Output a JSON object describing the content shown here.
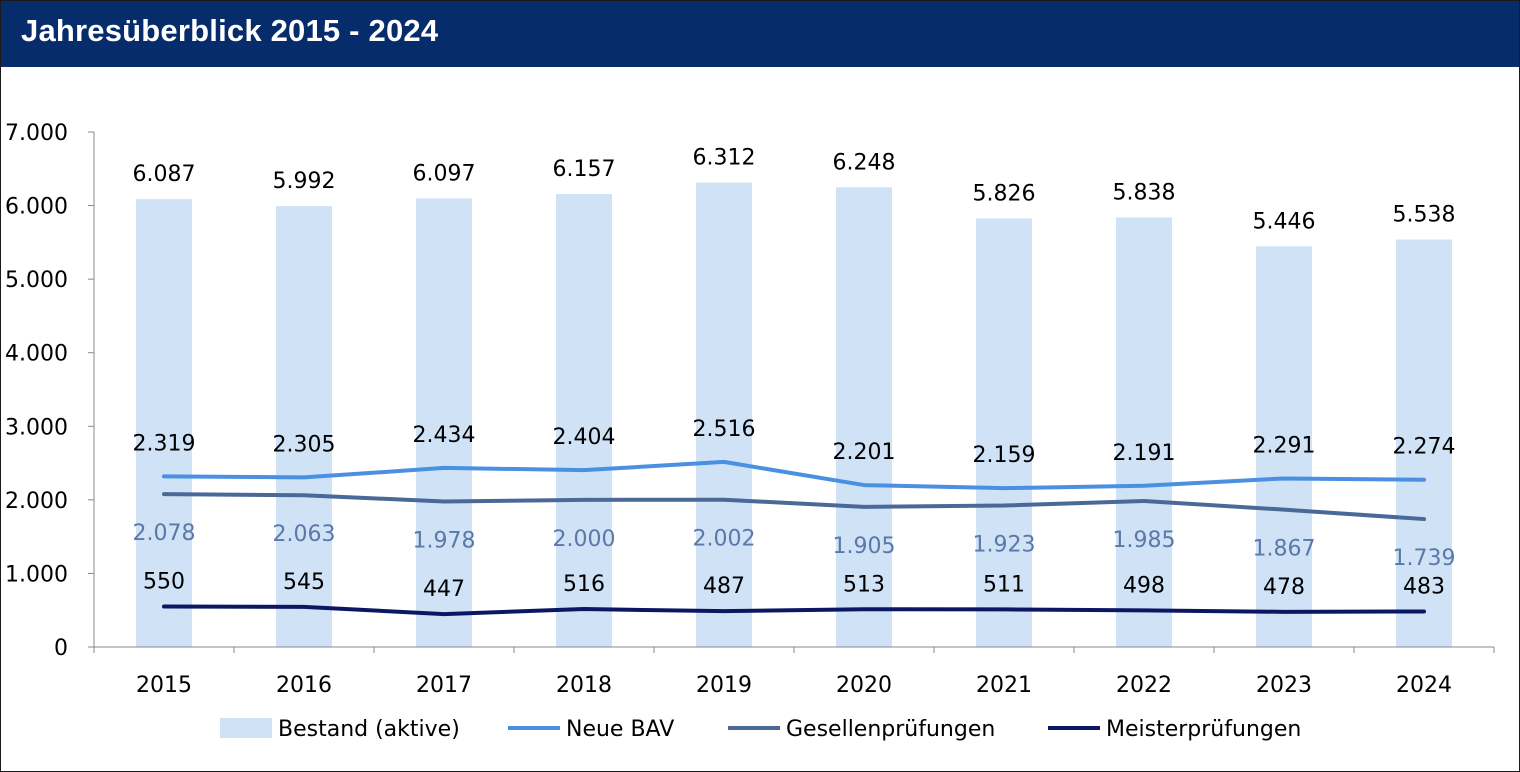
{
  "header": {
    "title": "Jahresüberblick 2015 - 2024"
  },
  "colors": {
    "header_bg": "#062c6c",
    "bestand": "#cfe2f6",
    "neue_bav": "#4a90e2",
    "gesellen": "#4a6898",
    "gesellen_labels": "#5a78a8",
    "meister": "#0c1764"
  },
  "chart_data": {
    "type": "bar",
    "categories": [
      "2015",
      "2016",
      "2017",
      "2018",
      "2019",
      "2020",
      "2021",
      "2022",
      "2023",
      "2024"
    ],
    "ylim": [
      0,
      7000
    ],
    "yticks": [
      0,
      1000,
      2000,
      3000,
      4000,
      5000,
      6000,
      7000
    ],
    "ytick_labels": [
      "0",
      "1.000",
      "2.000",
      "3.000",
      "4.000",
      "5.000",
      "6.000",
      "7.000"
    ],
    "grid": false,
    "legend_position": "bottom",
    "series": [
      {
        "name": "Bestand (aktive)",
        "kind": "bar",
        "values": [
          6087,
          5992,
          6097,
          6157,
          6312,
          6248,
          5826,
          5838,
          5446,
          5538
        ],
        "labels": [
          "6.087",
          "5.992",
          "6.097",
          "6.157",
          "6.312",
          "6.248",
          "5.826",
          "5.838",
          "5.446",
          "5.538"
        ]
      },
      {
        "name": "Neue BAV",
        "kind": "line",
        "values": [
          2319,
          2305,
          2434,
          2404,
          2516,
          2201,
          2159,
          2191,
          2291,
          2274
        ],
        "labels": [
          "2.319",
          "2.305",
          "2.434",
          "2.404",
          "2.516",
          "2.201",
          "2.159",
          "2.191",
          "2.291",
          "2.274"
        ]
      },
      {
        "name": "Gesellenprüfungen",
        "kind": "line",
        "values": [
          2078,
          2063,
          1978,
          2000,
          2002,
          1905,
          1923,
          1985,
          1867,
          1739
        ],
        "labels": [
          "2.078",
          "2.063",
          "1.978",
          "2.000",
          "2.002",
          "1.905",
          "1.923",
          "1.985",
          "1.867",
          "1.739"
        ]
      },
      {
        "name": "Meisterprüfungen",
        "kind": "line",
        "values": [
          550,
          545,
          447,
          516,
          487,
          513,
          511,
          498,
          478,
          483
        ],
        "labels": [
          "550",
          "545",
          "447",
          "516",
          "487",
          "513",
          "511",
          "498",
          "478",
          "483"
        ]
      }
    ]
  }
}
